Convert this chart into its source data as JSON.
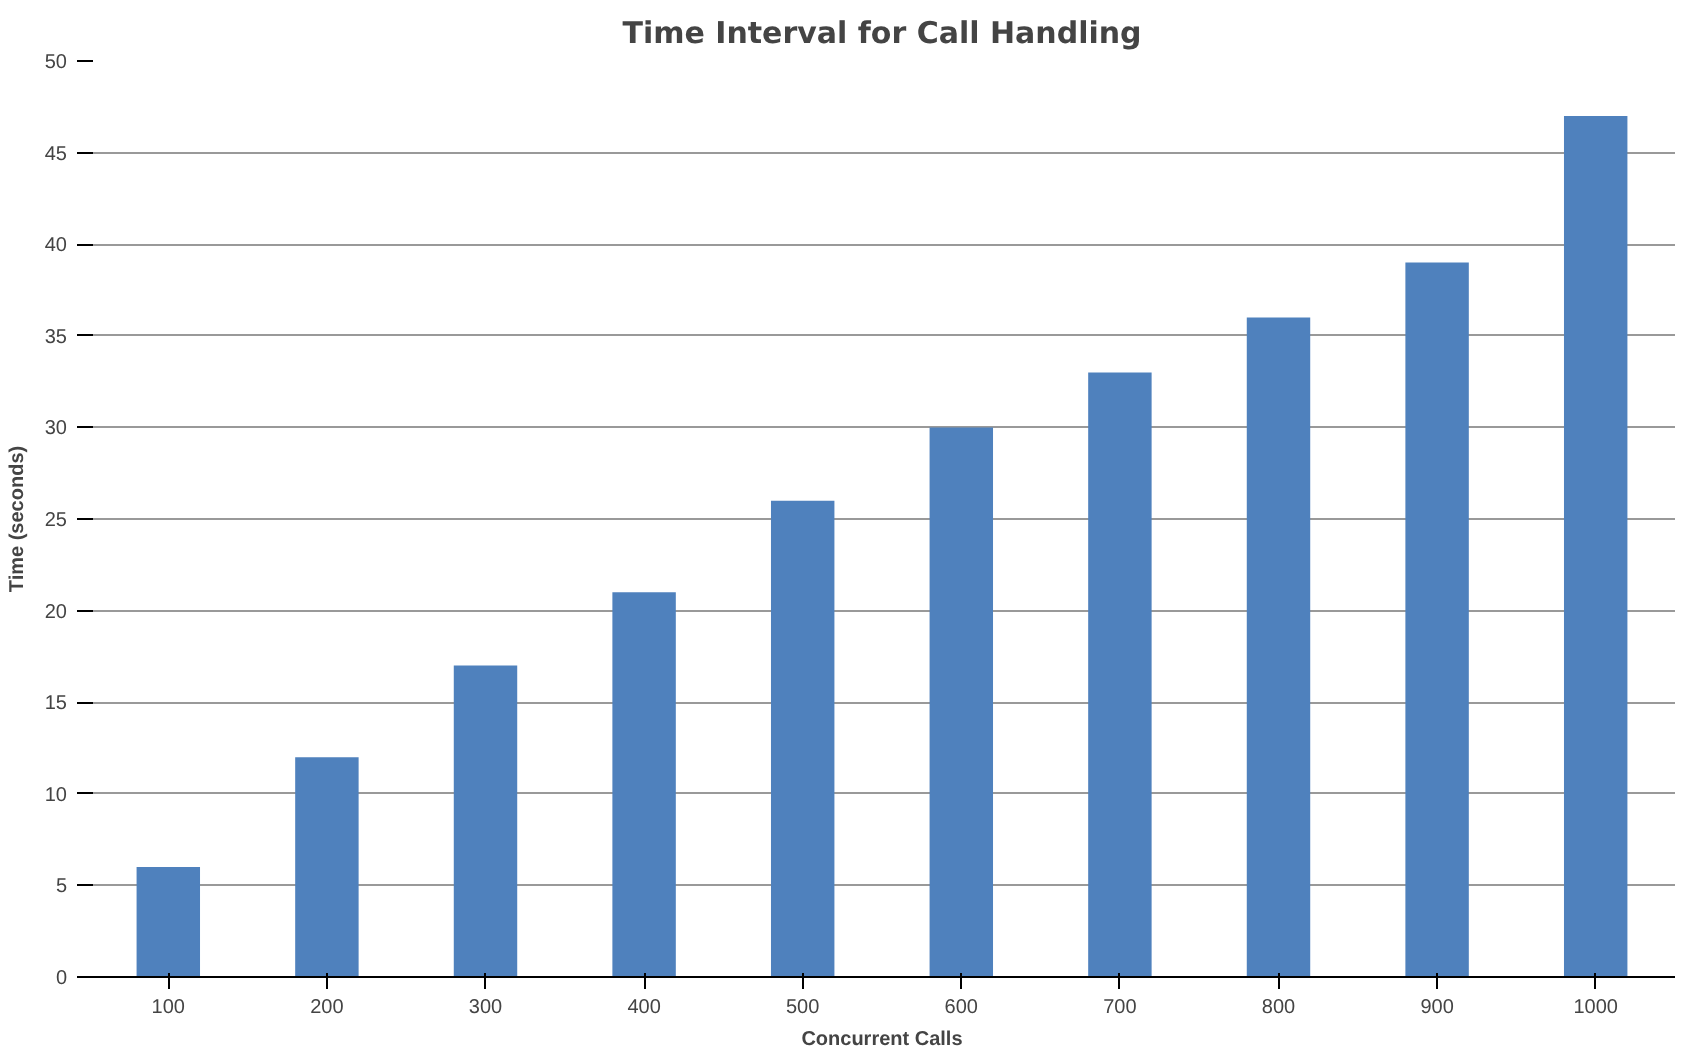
{
  "chart_data": {
    "type": "bar",
    "title": "Time Interval for Call Handling",
    "xlabel": "Concurrent Calls",
    "ylabel": "Time (seconds)",
    "categories": [
      "100",
      "200",
      "300",
      "400",
      "500",
      "600",
      "700",
      "800",
      "900",
      "1000"
    ],
    "values": [
      6,
      12,
      17,
      21,
      26,
      30,
      33,
      36,
      39,
      47
    ],
    "color": "#4f81bd",
    "ylim": [
      0,
      50
    ],
    "yticks": [
      0,
      5,
      10,
      15,
      20,
      25,
      30,
      35,
      40,
      45,
      50
    ],
    "grid": "y"
  }
}
